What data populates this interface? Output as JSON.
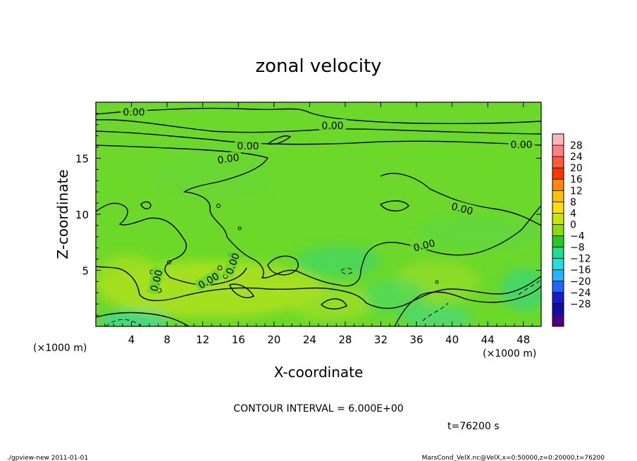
{
  "chart_data": {
    "type": "heatmap",
    "title": "zonal velocity",
    "xlabel": "X-coordinate",
    "ylabel": "Z-coordinate",
    "x_unit": "(×1000 m)",
    "y_unit": "(×1000 m)",
    "xlim": [
      0,
      50
    ],
    "ylim": [
      0,
      20
    ],
    "x_ticks": [
      4,
      8,
      12,
      16,
      20,
      24,
      28,
      32,
      36,
      40,
      44,
      48
    ],
    "y_ticks": [
      5,
      10,
      15
    ],
    "contour_interval_label": "CONTOUR INTERVAL = 6.000E+00",
    "time_label": "t=76200 s",
    "contour_labels": [
      "0.00",
      "0.00",
      "0.00",
      "0.00",
      "0.00",
      "0.00",
      "0.00",
      "0.00",
      "0.00",
      "0.00"
    ],
    "colorbar": {
      "levels": [
        28,
        24,
        20,
        16,
        12,
        8,
        4,
        0,
        -4,
        -8,
        -12,
        -16,
        -20,
        -24,
        -28
      ],
      "colors": [
        "#ffb6b6",
        "#ff8080",
        "#ff5a3a",
        "#ff3300",
        "#ff8a00",
        "#ffc000",
        "#ffe000",
        "#c8e600",
        "#88dd00",
        "#22cc22",
        "#22dd88",
        "#22dddd",
        "#22b4ff",
        "#2266ff",
        "#1a1ad0",
        "#1010a0",
        "#4b0082"
      ]
    },
    "grid": false
  },
  "footer": {
    "left": "./gpview-new   2011-01-01",
    "right": "MarsCond_VelX.nc@VelX,x=0:50000,z=0:20000,t=76200"
  }
}
